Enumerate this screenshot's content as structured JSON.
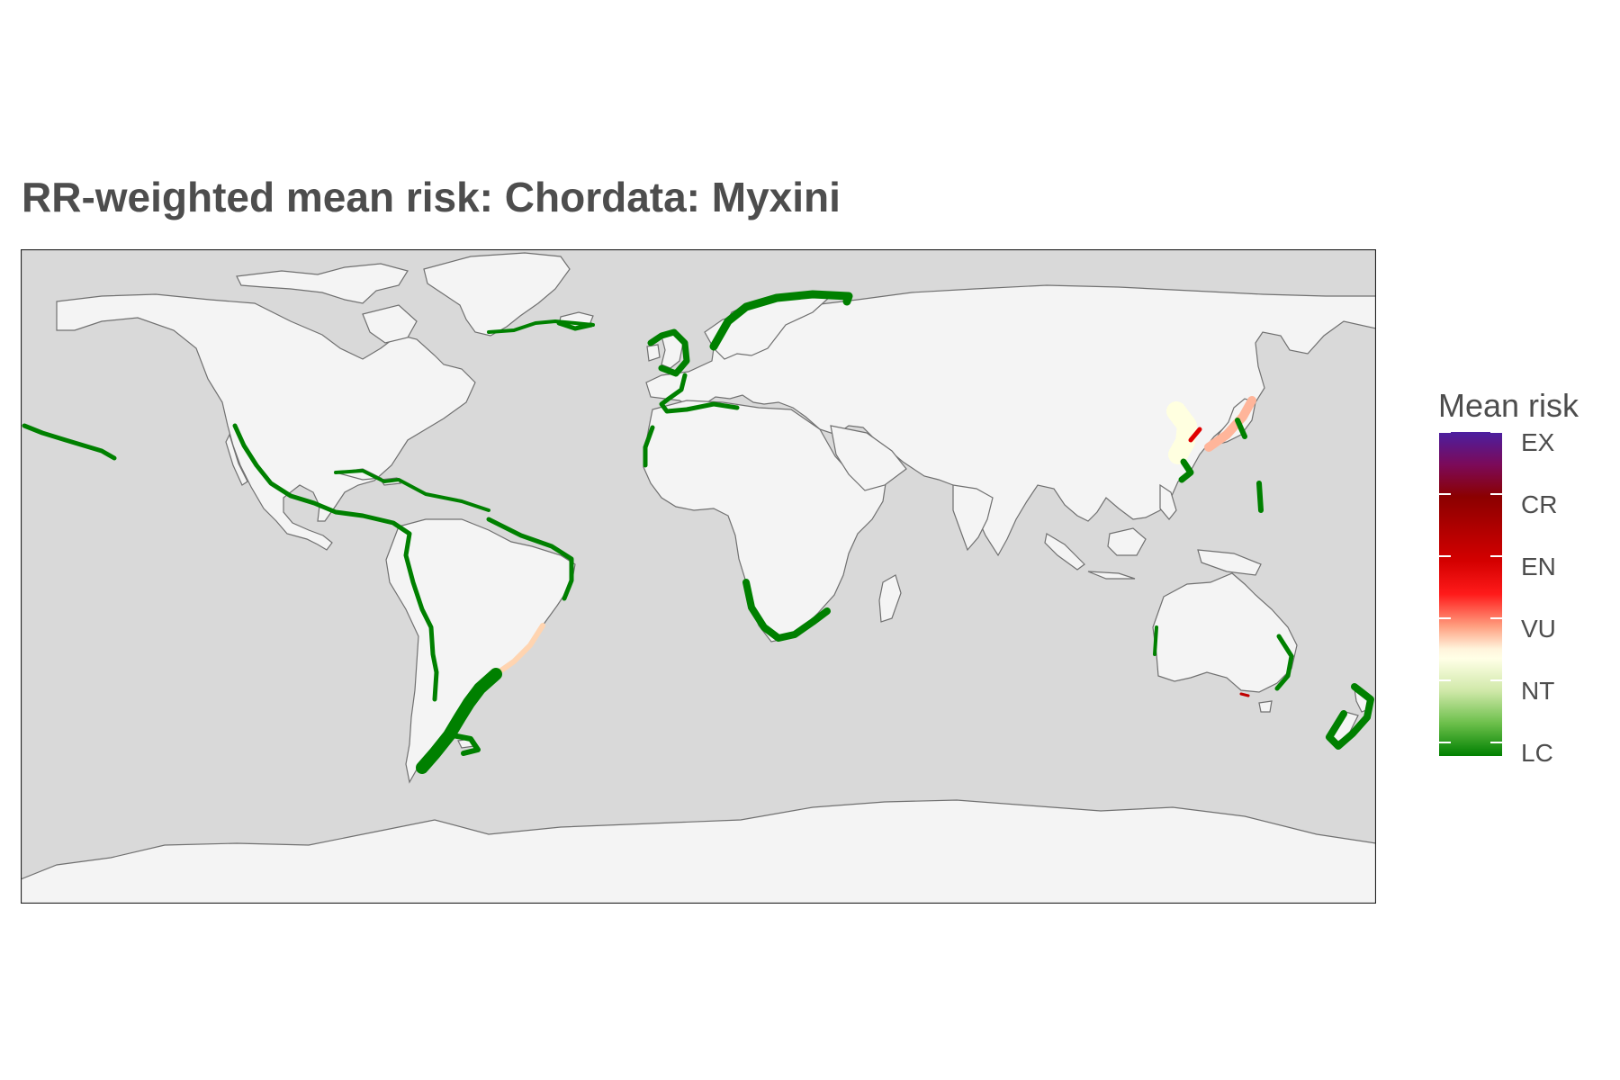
{
  "title": "RR-weighted mean risk: Chordata: Myxini",
  "legend": {
    "title": "Mean risk",
    "levels": [
      "EX",
      "CR",
      "EN",
      "VU",
      "NT",
      "LC"
    ]
  },
  "colors": {
    "ocean": "#d9d9d9",
    "land": "#f4f4f4",
    "coastline": "#707070",
    "LC": "#008000",
    "NT": "#ffffe6",
    "VU": "#ff1a1a",
    "EN": "#b00000",
    "CR": "#8b0000",
    "EX": "#4b1fa0"
  },
  "map": {
    "projection": "equirectangular",
    "regions": [
      {
        "name": "Norwegian and Barents coast",
        "risk": "LC"
      },
      {
        "name": "Iceland",
        "risk": "LC"
      },
      {
        "name": "Greenland south coast",
        "risk": "LC"
      },
      {
        "name": "British Isles and North Sea",
        "risk": "LC"
      },
      {
        "name": "Iberia and western Mediterranean",
        "risk": "LC"
      },
      {
        "name": "Northwest Africa",
        "risk": "LC"
      },
      {
        "name": "Southern Africa",
        "risk": "LC"
      },
      {
        "name": "Pacific coast of the Americas",
        "risk": "LC"
      },
      {
        "name": "Gulf of Mexico and Caribbean",
        "risk": "LC"
      },
      {
        "name": "Northeast Brazil",
        "risk": "LC"
      },
      {
        "name": "Southeast Brazil to Argentina",
        "risk": "NT"
      },
      {
        "name": "Patagonian shelf",
        "risk": "LC"
      },
      {
        "name": "Hawaii",
        "risk": "LC"
      },
      {
        "name": "East China and Yellow Sea",
        "risk": "NT"
      },
      {
        "name": "Korea and Japan",
        "risk": "VU"
      },
      {
        "name": "Taiwan",
        "risk": "LC"
      },
      {
        "name": "Izu and Bonin islands",
        "risk": "LC"
      },
      {
        "name": "Western Australia",
        "risk": "LC"
      },
      {
        "name": "Southeast Australia",
        "risk": "LC"
      },
      {
        "name": "Tasmania",
        "risk": "EN"
      },
      {
        "name": "New Zealand",
        "risk": "LC"
      }
    ]
  }
}
